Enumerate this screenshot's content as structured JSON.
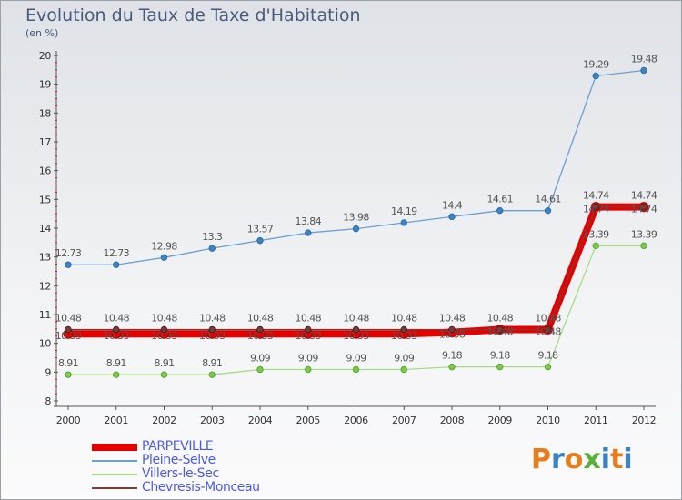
{
  "title": "Evolution du Taux de Taxe d'Habitation",
  "unit_label": "(en %)",
  "logo_text": "Proxiti",
  "logo_colors": [
    "#e87d1e",
    "#3b84c4",
    "#e87d1e",
    "#58b23a",
    "#3b84c4",
    "#e87d1e",
    "#3b84c4"
  ],
  "chart_data": {
    "type": "line",
    "x": [
      "2000",
      "2001",
      "2002",
      "2003",
      "2004",
      "2005",
      "2006",
      "2007",
      "2008",
      "2009",
      "2010",
      "2011",
      "2012"
    ],
    "ylim": [
      8,
      20
    ],
    "yticks": [
      "8",
      "9",
      "10",
      "11",
      "12",
      "13",
      "14",
      "15",
      "16",
      "17",
      "18",
      "19",
      "20"
    ],
    "series": [
      {
        "name": "PARPEVILLE",
        "color": "#e60000",
        "values": [
          10.33,
          10.33,
          10.33,
          10.33,
          10.33,
          10.33,
          10.33,
          10.33,
          10.38,
          10.48,
          10.48,
          14.74,
          14.74
        ],
        "labels": [
          "10.33",
          "10.33",
          "10.33",
          "10.33",
          "10.33",
          "10.33",
          "10.33",
          "10.33",
          "10.38",
          "10.48",
          "10.48",
          "14.74",
          "14.74"
        ]
      },
      {
        "name": "Pleine-Selve",
        "color": "#6c9fd2",
        "values": [
          12.73,
          12.73,
          12.98,
          13.3,
          13.57,
          13.84,
          13.98,
          14.19,
          14.4,
          14.61,
          14.61,
          19.29,
          19.48
        ],
        "labels": [
          "12.73",
          "12.73",
          "12.98",
          "13.3",
          "13.57",
          "13.84",
          "13.98",
          "14.19",
          "14.4",
          "14.61",
          "14.61",
          "19.29",
          "19.48"
        ]
      },
      {
        "name": "Villers-le-Sec",
        "color": "#a8dc82",
        "values": [
          8.91,
          8.91,
          8.91,
          8.91,
          9.09,
          9.09,
          9.09,
          9.09,
          9.18,
          9.18,
          9.18,
          13.39,
          13.39
        ],
        "labels": [
          "8.91",
          "8.91",
          "8.91",
          "8.91",
          "9.09",
          "9.09",
          "9.09",
          "9.09",
          "9.18",
          "9.18",
          "9.18",
          "13.39",
          "13.39"
        ]
      },
      {
        "name": "Chevresis-Monceau",
        "color": "#7a3b3b",
        "values": [
          10.48,
          10.48,
          10.48,
          10.48,
          10.48,
          10.48,
          10.48,
          10.48,
          10.48,
          10.48,
          10.48,
          14.74,
          14.74
        ],
        "labels": [
          "10.48",
          "10.48",
          "10.48",
          "10.48",
          "10.48",
          "10.48",
          "10.48",
          "10.48",
          "10.48",
          "10.48",
          "10.48",
          "14.74",
          "14.74"
        ]
      }
    ],
    "legend_position": "bottom-left",
    "grid": false
  }
}
